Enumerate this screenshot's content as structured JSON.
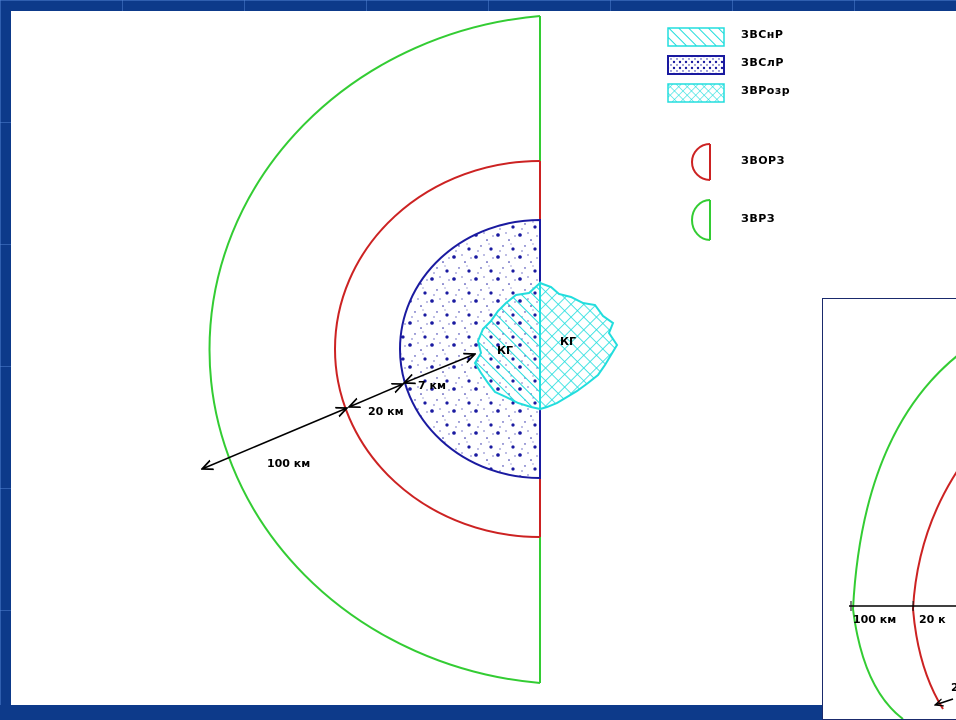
{
  "legend": {
    "items": [
      {
        "label": "ЗВСнР",
        "swatch": "hatch-cyan"
      },
      {
        "label": "ЗВСлР",
        "swatch": "dots-blue"
      },
      {
        "label": "ЗВРозр",
        "swatch": "cross-cyan"
      },
      {
        "label": "ЗВОРЗ",
        "swatch": "arc-red"
      },
      {
        "label": "ЗВРЗ",
        "swatch": "arc-green"
      }
    ]
  },
  "zones": {
    "outer_color": "#33cc33",
    "middle_color": "#cc2222",
    "inner_color": "#1a1aa0",
    "core_color": "#22dddd"
  },
  "center_labels": {
    "left": "КГ",
    "right": "КГ"
  },
  "distances": {
    "outer": "100 км",
    "middle": "20 км",
    "inner": "7 км"
  },
  "inset": {
    "outer": "100 км",
    "middle": "20 к",
    "partial": "2"
  }
}
